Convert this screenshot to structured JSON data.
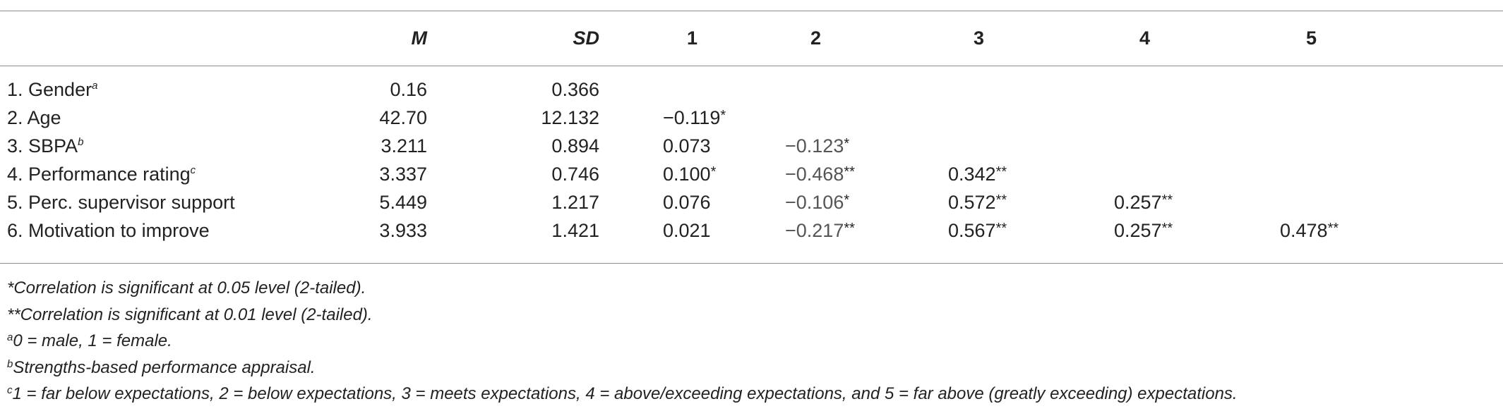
{
  "table": {
    "headers": [
      "",
      "M",
      "SD",
      "1",
      "2",
      "3",
      "4",
      "5"
    ],
    "rows": [
      {
        "label": "1. Gender",
        "sup": "a",
        "m": "0.16",
        "sd": "0.366",
        "c1": "",
        "c2": "",
        "c3": "",
        "c4": "",
        "c5": ""
      },
      {
        "label": "2. Age",
        "sup": "",
        "m": "42.70",
        "sd": "12.132",
        "c1": "−0.119*",
        "c2": "",
        "c3": "",
        "c4": "",
        "c5": ""
      },
      {
        "label": "3. SBPA",
        "sup": "b",
        "m": "3.211",
        "sd": "0.894",
        "c1": "0.073",
        "c2": "−0.123*",
        "c3": "",
        "c4": "",
        "c5": ""
      },
      {
        "label": "4. Performance rating",
        "sup": "c",
        "m": "3.337",
        "sd": "0.746",
        "c1": "0.100*",
        "c2": "−0.468**",
        "c3": "0.342**",
        "c4": "",
        "c5": ""
      },
      {
        "label": "5. Perc. supervisor support",
        "sup": "",
        "m": "5.449",
        "sd": "1.217",
        "c1": "0.076",
        "c2": "−0.106*",
        "c3": "0.572**",
        "c4": "0.257**",
        "c5": ""
      },
      {
        "label": "6. Motivation to improve",
        "sup": "",
        "m": "3.933",
        "sd": "1.421",
        "c1": "0.021",
        "c2": "−0.217**",
        "c3": "0.567**",
        "c4": "0.257**",
        "c5": "0.478**"
      }
    ]
  },
  "notes": [
    {
      "sup": "",
      "text": "*Correlation is significant at 0.05 level (2-tailed)."
    },
    {
      "sup": "",
      "text": "**Correlation is significant at 0.01 level (2-tailed)."
    },
    {
      "sup": "a",
      "text": "0 = male, 1 = female."
    },
    {
      "sup": "b",
      "text": "Strengths-based performance appraisal."
    },
    {
      "sup": "c",
      "text": "1 = far below expectations, 2 = below expectations, 3 = meets expectations, 4 = above/exceeding expectations, and 5 = far above (greatly exceeding) expectations."
    }
  ]
}
